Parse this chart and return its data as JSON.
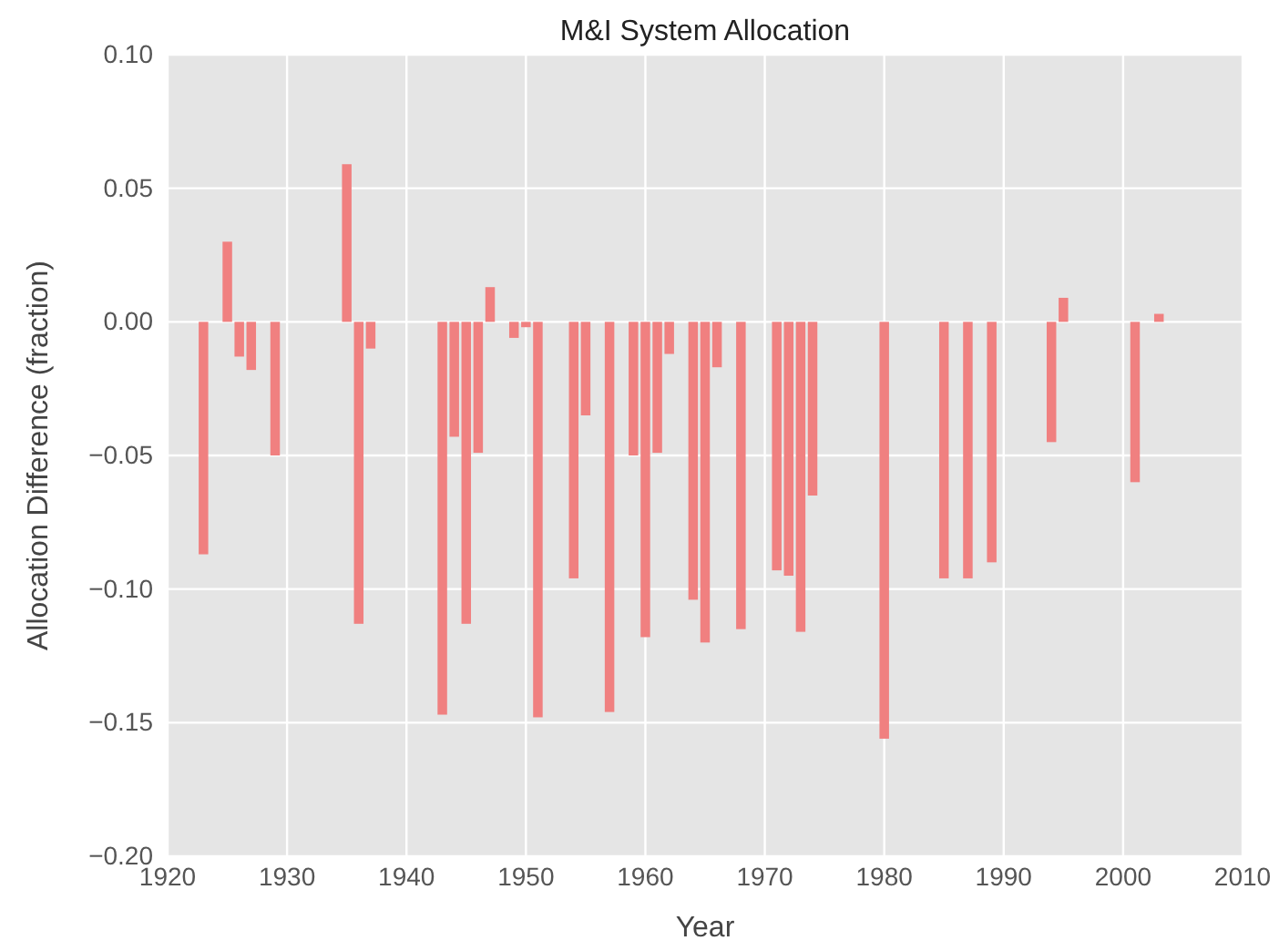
{
  "chart_data": {
    "type": "bar",
    "title": "M&I System Allocation",
    "xlabel": "Year",
    "ylabel": "Allocation Difference (fraction)",
    "x": [
      1923,
      1925,
      1926,
      1927,
      1929,
      1935,
      1936,
      1937,
      1943,
      1944,
      1945,
      1946,
      1947,
      1949,
      1950,
      1951,
      1954,
      1955,
      1957,
      1959,
      1960,
      1961,
      1962,
      1964,
      1965,
      1966,
      1968,
      1971,
      1972,
      1973,
      1974,
      1980,
      1985,
      1987,
      1989,
      1994,
      1995,
      2001,
      2003
    ],
    "values": [
      -0.087,
      0.03,
      -0.013,
      -0.018,
      -0.05,
      0.059,
      -0.113,
      -0.01,
      -0.147,
      -0.043,
      -0.113,
      -0.049,
      0.013,
      -0.006,
      -0.002,
      -0.148,
      -0.096,
      -0.035,
      -0.146,
      -0.05,
      -0.118,
      -0.049,
      -0.012,
      -0.104,
      -0.12,
      -0.017,
      -0.115,
      -0.093,
      -0.095,
      -0.116,
      -0.065,
      -0.156,
      -0.096,
      -0.096,
      -0.09,
      -0.045,
      0.009,
      -0.06,
      0.003
    ],
    "color": "#f08080",
    "xlim": [
      1920,
      2010
    ],
    "xticks": [
      1920,
      1930,
      1940,
      1950,
      1960,
      1970,
      1980,
      1990,
      2000,
      2010
    ],
    "ylim": [
      -0.2,
      0.1
    ],
    "yticks": [
      {
        "value": -0.2,
        "label": "−0.20"
      },
      {
        "value": -0.15,
        "label": "−0.15"
      },
      {
        "value": -0.1,
        "label": "−0.10"
      },
      {
        "value": -0.05,
        "label": "−0.05"
      },
      {
        "value": 0,
        "label": "0.00"
      },
      {
        "value": 0.05,
        "label": "0.05"
      },
      {
        "value": 0.1,
        "label": "0.10"
      }
    ],
    "grid": true
  }
}
